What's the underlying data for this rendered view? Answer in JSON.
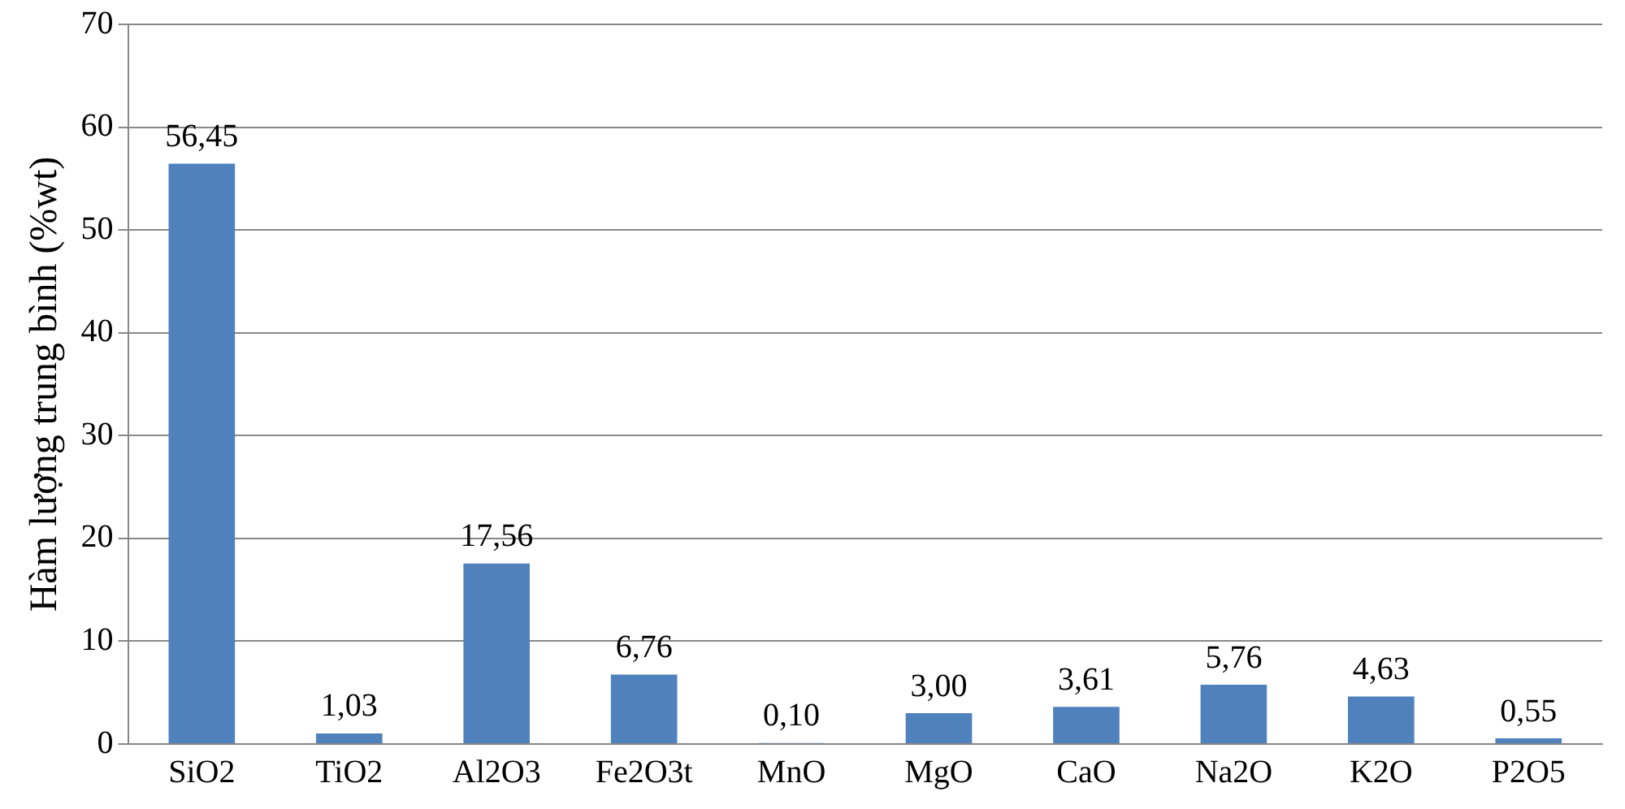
{
  "chart_data": {
    "type": "bar",
    "ylabel": "Hàm lượng trung bình (%wt)",
    "categories": [
      "SiO2",
      "TiO2",
      "Al2O3",
      "Fe2O3t",
      "MnO",
      "MgO",
      "CaO",
      "Na2O",
      "K2O",
      "P2O5"
    ],
    "values": [
      56.45,
      1.03,
      17.56,
      6.76,
      0.1,
      3.0,
      3.61,
      5.76,
      4.63,
      0.55
    ],
    "value_labels": [
      "56,45",
      "1,03",
      "17,56",
      "6,76",
      "0,10",
      "3,00",
      "3,61",
      "5,76",
      "4,63",
      "0,55"
    ],
    "color": "#4f81bd",
    "ylim": [
      0,
      70
    ],
    "yticks": [
      0,
      10,
      20,
      30,
      40,
      50,
      60,
      70
    ],
    "grid": "y",
    "legend": false
  }
}
